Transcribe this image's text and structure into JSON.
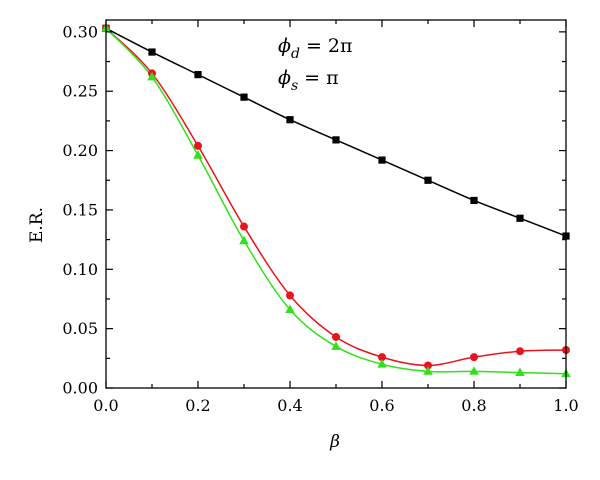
{
  "chart_data": {
    "type": "line",
    "title": "",
    "xlabel": "β",
    "ylabel": "E.R.",
    "xlim": [
      0,
      1
    ],
    "ylim": [
      0,
      0.31
    ],
    "x_ticks": [
      "0.0",
      "0.2",
      "0.4",
      "0.6",
      "0.8",
      "1.0"
    ],
    "y_ticks": [
      "0.00",
      "0.05",
      "0.10",
      "0.15",
      "0.20",
      "0.25",
      "0.30"
    ],
    "grid": false,
    "legend": "none",
    "annotations": [
      {
        "symbol": "ϕ",
        "sub": "d",
        "rest": " = 2π"
      },
      {
        "symbol": "ϕ",
        "sub": "s",
        "rest": " = π"
      }
    ],
    "x": [
      0.0,
      0.1,
      0.2,
      0.3,
      0.4,
      0.5,
      0.6,
      0.7,
      0.8,
      0.9,
      1.0
    ],
    "series": [
      {
        "marker": "square",
        "color": "#000000",
        "values": [
          0.303,
          0.283,
          0.264,
          0.245,
          0.226,
          0.209,
          0.192,
          0.175,
          0.158,
          0.143,
          0.128
        ]
      },
      {
        "marker": "circle",
        "color": "#e8141e",
        "values": [
          0.303,
          0.265,
          0.204,
          0.136,
          0.078,
          0.043,
          0.026,
          0.019,
          0.026,
          0.031,
          0.032
        ]
      },
      {
        "marker": "triangle",
        "color": "#33e01c",
        "values": [
          0.303,
          0.262,
          0.196,
          0.124,
          0.066,
          0.035,
          0.02,
          0.014,
          0.014,
          0.013,
          0.012
        ]
      }
    ]
  }
}
